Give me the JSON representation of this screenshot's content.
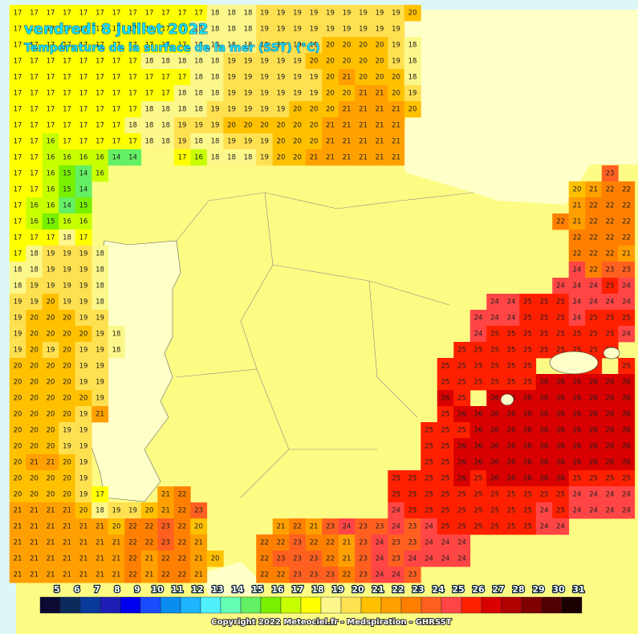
{
  "header": {
    "title": "vendredi 8 juillet 2022",
    "subtitle": "Température de la surface de la mer (SST) (°C)"
  },
  "map": {
    "rows": [
      [
        17,
        17,
        17,
        17,
        17,
        17,
        17,
        17,
        17,
        17,
        17,
        17,
        18,
        18,
        18,
        19,
        19,
        19,
        19,
        19,
        19,
        19,
        19,
        19,
        20,
        null,
        null,
        null,
        null,
        null,
        null,
        null,
        null,
        null,
        null,
        null,
        null,
        null
      ],
      [
        17,
        17,
        17,
        17,
        17,
        17,
        17,
        17,
        17,
        17,
        17,
        18,
        18,
        18,
        18,
        19,
        19,
        19,
        19,
        19,
        19,
        19,
        19,
        19,
        null,
        null,
        null,
        null,
        null,
        null,
        null,
        null,
        null,
        null,
        null,
        null,
        null,
        null
      ],
      [
        17,
        17,
        17,
        17,
        17,
        17,
        17,
        17,
        17,
        17,
        17,
        18,
        18,
        18,
        18,
        19,
        19,
        19,
        19,
        20,
        20,
        20,
        20,
        19,
        18,
        null,
        null,
        null,
        null,
        null,
        null,
        null,
        null,
        null,
        null,
        null,
        null,
        null
      ],
      [
        17,
        17,
        17,
        17,
        17,
        17,
        17,
        17,
        18,
        18,
        18,
        18,
        18,
        19,
        19,
        19,
        19,
        19,
        20,
        20,
        20,
        20,
        20,
        19,
        18,
        null,
        null,
        null,
        null,
        null,
        null,
        null,
        null,
        null,
        null,
        null,
        null,
        null
      ],
      [
        17,
        17,
        17,
        17,
        17,
        17,
        17,
        17,
        17,
        17,
        17,
        18,
        18,
        19,
        19,
        19,
        19,
        19,
        19,
        20,
        21,
        20,
        20,
        20,
        18,
        null,
        null,
        null,
        null,
        null,
        null,
        null,
        null,
        null,
        null,
        null,
        null,
        null
      ],
      [
        17,
        17,
        17,
        17,
        17,
        17,
        17,
        17,
        17,
        17,
        18,
        18,
        18,
        19,
        19,
        19,
        19,
        19,
        19,
        20,
        20,
        21,
        21,
        20,
        19,
        null,
        null,
        null,
        null,
        null,
        null,
        null,
        null,
        null,
        null,
        null,
        null,
        null
      ],
      [
        17,
        17,
        17,
        17,
        17,
        17,
        17,
        17,
        18,
        18,
        18,
        18,
        19,
        19,
        19,
        19,
        19,
        20,
        20,
        20,
        21,
        21,
        21,
        21,
        20,
        null,
        null,
        null,
        null,
        null,
        null,
        null,
        null,
        null,
        null,
        null,
        null,
        null
      ],
      [
        17,
        17,
        17,
        17,
        17,
        17,
        17,
        18,
        18,
        18,
        19,
        19,
        19,
        20,
        20,
        20,
        20,
        20,
        20,
        21,
        21,
        21,
        21,
        21,
        null,
        null,
        null,
        null,
        null,
        null,
        null,
        null,
        null,
        null,
        null,
        null,
        null,
        null
      ],
      [
        17,
        17,
        16,
        17,
        17,
        17,
        17,
        17,
        18,
        18,
        19,
        18,
        18,
        19,
        19,
        19,
        20,
        20,
        20,
        21,
        21,
        21,
        21,
        21,
        null,
        null,
        null,
        null,
        null,
        null,
        null,
        null,
        null,
        null,
        null,
        null,
        null,
        null
      ],
      [
        17,
        17,
        16,
        16,
        16,
        16,
        14,
        14,
        null,
        null,
        17,
        16,
        18,
        18,
        18,
        19,
        20,
        20,
        21,
        21,
        21,
        21,
        21,
        21,
        null,
        null,
        null,
        null,
        null,
        null,
        null,
        null,
        null,
        null,
        null,
        null,
        null,
        null
      ],
      [
        17,
        17,
        16,
        15,
        14,
        16,
        null,
        null,
        null,
        null,
        null,
        null,
        null,
        null,
        null,
        null,
        null,
        null,
        null,
        null,
        null,
        null,
        null,
        null,
        null,
        null,
        null,
        null,
        null,
        null,
        null,
        null,
        null,
        null,
        null,
        null,
        23,
        null
      ],
      [
        17,
        17,
        16,
        15,
        14,
        null,
        null,
        null,
        null,
        null,
        null,
        null,
        null,
        null,
        null,
        null,
        null,
        null,
        null,
        null,
        null,
        null,
        null,
        null,
        null,
        null,
        null,
        null,
        null,
        null,
        null,
        null,
        null,
        null,
        20,
        21,
        22,
        22
      ],
      [
        17,
        16,
        16,
        14,
        15,
        null,
        null,
        null,
        null,
        null,
        null,
        null,
        null,
        null,
        null,
        null,
        null,
        null,
        null,
        null,
        null,
        null,
        null,
        null,
        null,
        null,
        null,
        null,
        null,
        null,
        null,
        null,
        null,
        null,
        21,
        22,
        22,
        22
      ],
      [
        17,
        16,
        15,
        16,
        16,
        null,
        null,
        null,
        null,
        null,
        null,
        null,
        null,
        null,
        null,
        null,
        null,
        null,
        null,
        null,
        null,
        null,
        null,
        null,
        null,
        null,
        null,
        null,
        null,
        null,
        null,
        null,
        null,
        22,
        21,
        22,
        22,
        22
      ],
      [
        17,
        17,
        17,
        18,
        17,
        null,
        null,
        null,
        null,
        null,
        null,
        null,
        null,
        null,
        null,
        null,
        null,
        null,
        null,
        null,
        null,
        null,
        null,
        null,
        null,
        null,
        null,
        null,
        null,
        null,
        null,
        null,
        null,
        null,
        22,
        22,
        22,
        22
      ],
      [
        17,
        18,
        19,
        19,
        19,
        18,
        null,
        null,
        null,
        null,
        null,
        null,
        null,
        null,
        null,
        null,
        null,
        null,
        null,
        null,
        null,
        null,
        null,
        null,
        null,
        null,
        null,
        null,
        null,
        null,
        null,
        null,
        null,
        null,
        22,
        22,
        22,
        21
      ],
      [
        18,
        18,
        19,
        19,
        19,
        18,
        null,
        null,
        null,
        null,
        null,
        null,
        null,
        null,
        null,
        null,
        null,
        null,
        null,
        null,
        null,
        null,
        null,
        null,
        null,
        null,
        null,
        null,
        null,
        null,
        null,
        null,
        null,
        null,
        24,
        22,
        23,
        23
      ],
      [
        18,
        19,
        19,
        19,
        19,
        18,
        null,
        null,
        null,
        null,
        null,
        null,
        null,
        null,
        null,
        null,
        null,
        null,
        null,
        null,
        null,
        null,
        null,
        null,
        null,
        null,
        null,
        null,
        null,
        null,
        null,
        null,
        null,
        24,
        24,
        24,
        25,
        24
      ],
      [
        19,
        19,
        20,
        19,
        19,
        18,
        null,
        null,
        null,
        null,
        null,
        null,
        null,
        null,
        null,
        null,
        null,
        null,
        null,
        null,
        null,
        null,
        null,
        null,
        null,
        null,
        null,
        null,
        null,
        24,
        24,
        25,
        25,
        25,
        24,
        24,
        24,
        24
      ],
      [
        19,
        20,
        20,
        20,
        19,
        19,
        null,
        null,
        null,
        null,
        null,
        null,
        null,
        null,
        null,
        null,
        null,
        null,
        null,
        null,
        null,
        null,
        null,
        null,
        null,
        null,
        null,
        null,
        24,
        24,
        24,
        25,
        25,
        25,
        24,
        25,
        25,
        25
      ],
      [
        19,
        20,
        20,
        20,
        20,
        19,
        18,
        null,
        null,
        null,
        null,
        null,
        null,
        null,
        null,
        null,
        null,
        null,
        null,
        null,
        null,
        null,
        null,
        null,
        null,
        null,
        null,
        null,
        24,
        25,
        25,
        25,
        25,
        25,
        25,
        25,
        25,
        24
      ],
      [
        19,
        20,
        19,
        20,
        19,
        19,
        18,
        null,
        null,
        null,
        null,
        null,
        null,
        null,
        null,
        null,
        null,
        null,
        null,
        null,
        null,
        null,
        null,
        null,
        null,
        null,
        null,
        25,
        25,
        25,
        25,
        25,
        25,
        25,
        25,
        25,
        25,
        null
      ],
      [
        20,
        20,
        20,
        20,
        19,
        19,
        null,
        null,
        null,
        null,
        null,
        null,
        null,
        null,
        null,
        null,
        null,
        null,
        null,
        null,
        null,
        null,
        null,
        null,
        null,
        null,
        25,
        25,
        25,
        25,
        25,
        25,
        null,
        null,
        25,
        25,
        null,
        25
      ],
      [
        20,
        20,
        20,
        20,
        19,
        19,
        null,
        null,
        null,
        null,
        null,
        null,
        null,
        null,
        null,
        null,
        null,
        null,
        null,
        null,
        null,
        null,
        null,
        null,
        null,
        null,
        25,
        25,
        25,
        25,
        25,
        25,
        26,
        26,
        26,
        26,
        26,
        26
      ],
      [
        20,
        20,
        20,
        20,
        20,
        19,
        null,
        null,
        null,
        null,
        null,
        null,
        null,
        null,
        null,
        null,
        null,
        null,
        null,
        null,
        null,
        null,
        null,
        null,
        null,
        null,
        26,
        25,
        null,
        26,
        26,
        26,
        26,
        26,
        26,
        26,
        26,
        26
      ],
      [
        20,
        20,
        20,
        20,
        19,
        21,
        null,
        null,
        null,
        null,
        null,
        null,
        null,
        null,
        null,
        null,
        null,
        null,
        null,
        null,
        null,
        null,
        null,
        null,
        null,
        null,
        25,
        26,
        26,
        26,
        26,
        26,
        26,
        26,
        26,
        26,
        26,
        26
      ],
      [
        20,
        20,
        20,
        19,
        19,
        null,
        null,
        null,
        null,
        null,
        null,
        null,
        null,
        null,
        null,
        null,
        null,
        null,
        null,
        null,
        null,
        null,
        null,
        null,
        null,
        25,
        25,
        25,
        26,
        26,
        26,
        26,
        26,
        26,
        26,
        26,
        26,
        26
      ],
      [
        20,
        20,
        20,
        19,
        19,
        null,
        null,
        null,
        null,
        null,
        null,
        null,
        null,
        null,
        null,
        null,
        null,
        null,
        null,
        null,
        null,
        null,
        null,
        null,
        null,
        25,
        25,
        26,
        26,
        26,
        26,
        26,
        26,
        26,
        26,
        26,
        26,
        26
      ],
      [
        20,
        21,
        21,
        20,
        19,
        null,
        null,
        null,
        null,
        null,
        null,
        null,
        null,
        null,
        null,
        null,
        null,
        null,
        null,
        null,
        null,
        null,
        null,
        null,
        null,
        25,
        25,
        26,
        26,
        26,
        26,
        26,
        26,
        26,
        26,
        26,
        26,
        26
      ],
      [
        20,
        20,
        20,
        20,
        19,
        null,
        null,
        null,
        null,
        null,
        null,
        null,
        null,
        null,
        null,
        null,
        null,
        null,
        null,
        null,
        null,
        null,
        null,
        25,
        25,
        25,
        25,
        26,
        25,
        26,
        26,
        26,
        26,
        26,
        25,
        25,
        25,
        25
      ],
      [
        20,
        20,
        20,
        20,
        19,
        17,
        null,
        null,
        null,
        21,
        22,
        null,
        null,
        null,
        null,
        null,
        null,
        null,
        null,
        null,
        null,
        null,
        null,
        25,
        25,
        25,
        25,
        25,
        25,
        25,
        25,
        25,
        25,
        25,
        24,
        24,
        24,
        24
      ],
      [
        21,
        21,
        21,
        21,
        20,
        18,
        19,
        19,
        20,
        21,
        22,
        23,
        null,
        null,
        null,
        null,
        null,
        null,
        null,
        null,
        null,
        null,
        null,
        24,
        25,
        25,
        25,
        25,
        25,
        25,
        25,
        25,
        24,
        25,
        24,
        24,
        24,
        24
      ],
      [
        21,
        21,
        21,
        21,
        21,
        21,
        20,
        22,
        22,
        23,
        22,
        20,
        null,
        null,
        null,
        null,
        21,
        22,
        21,
        23,
        24,
        23,
        23,
        24,
        23,
        24,
        25,
        25,
        25,
        25,
        25,
        25,
        24,
        24,
        null,
        null,
        null,
        null
      ],
      [
        21,
        21,
        21,
        21,
        21,
        21,
        21,
        22,
        22,
        23,
        22,
        21,
        null,
        null,
        null,
        22,
        22,
        23,
        22,
        22,
        21,
        23,
        24,
        23,
        23,
        24,
        24,
        24,
        null,
        null,
        null,
        null,
        null,
        null,
        null,
        null,
        null,
        null
      ],
      [
        21,
        21,
        21,
        21,
        21,
        21,
        21,
        22,
        21,
        22,
        22,
        21,
        20,
        null,
        null,
        22,
        23,
        23,
        23,
        22,
        21,
        23,
        24,
        23,
        24,
        24,
        24,
        24,
        null,
        null,
        null,
        null,
        null,
        null,
        null,
        null,
        null,
        null
      ],
      [
        21,
        21,
        21,
        21,
        21,
        21,
        21,
        22,
        21,
        22,
        22,
        21,
        null,
        null,
        null,
        22,
        22,
        23,
        23,
        23,
        22,
        23,
        24,
        24,
        23,
        null,
        null,
        null,
        null,
        null,
        null,
        null,
        null,
        null,
        null,
        null,
        null,
        null
      ]
    ]
  },
  "colorbar": {
    "labels": [
      5,
      6,
      7,
      8,
      9,
      10,
      11,
      12,
      13,
      14,
      15,
      16,
      17,
      18,
      19,
      20,
      21,
      22,
      23,
      24,
      25,
      26,
      27,
      28,
      29,
      30,
      31
    ],
    "colors": [
      "#0a0a32",
      "#0c2a5c",
      "#0a3a9a",
      "#1e1eb4",
      "#0000f0",
      "#1a4cff",
      "#0a8cf0",
      "#1eb4ff",
      "#50f0ff",
      "#64ffb4",
      "#64f064",
      "#78f000",
      "#c8ff00",
      "#ffff00",
      "#fbf78a",
      "#ffe050",
      "#ffc000",
      "#ffa000",
      "#ff8000",
      "#ff6020",
      "#ff4545",
      "#ff2000",
      "#d80000",
      "#b00000",
      "#800000",
      "#500000",
      "#1a0000"
    ]
  },
  "footer": {
    "copyright": "Copyright 2022 Meteociel.fr - Medspiration - GHRSST"
  }
}
